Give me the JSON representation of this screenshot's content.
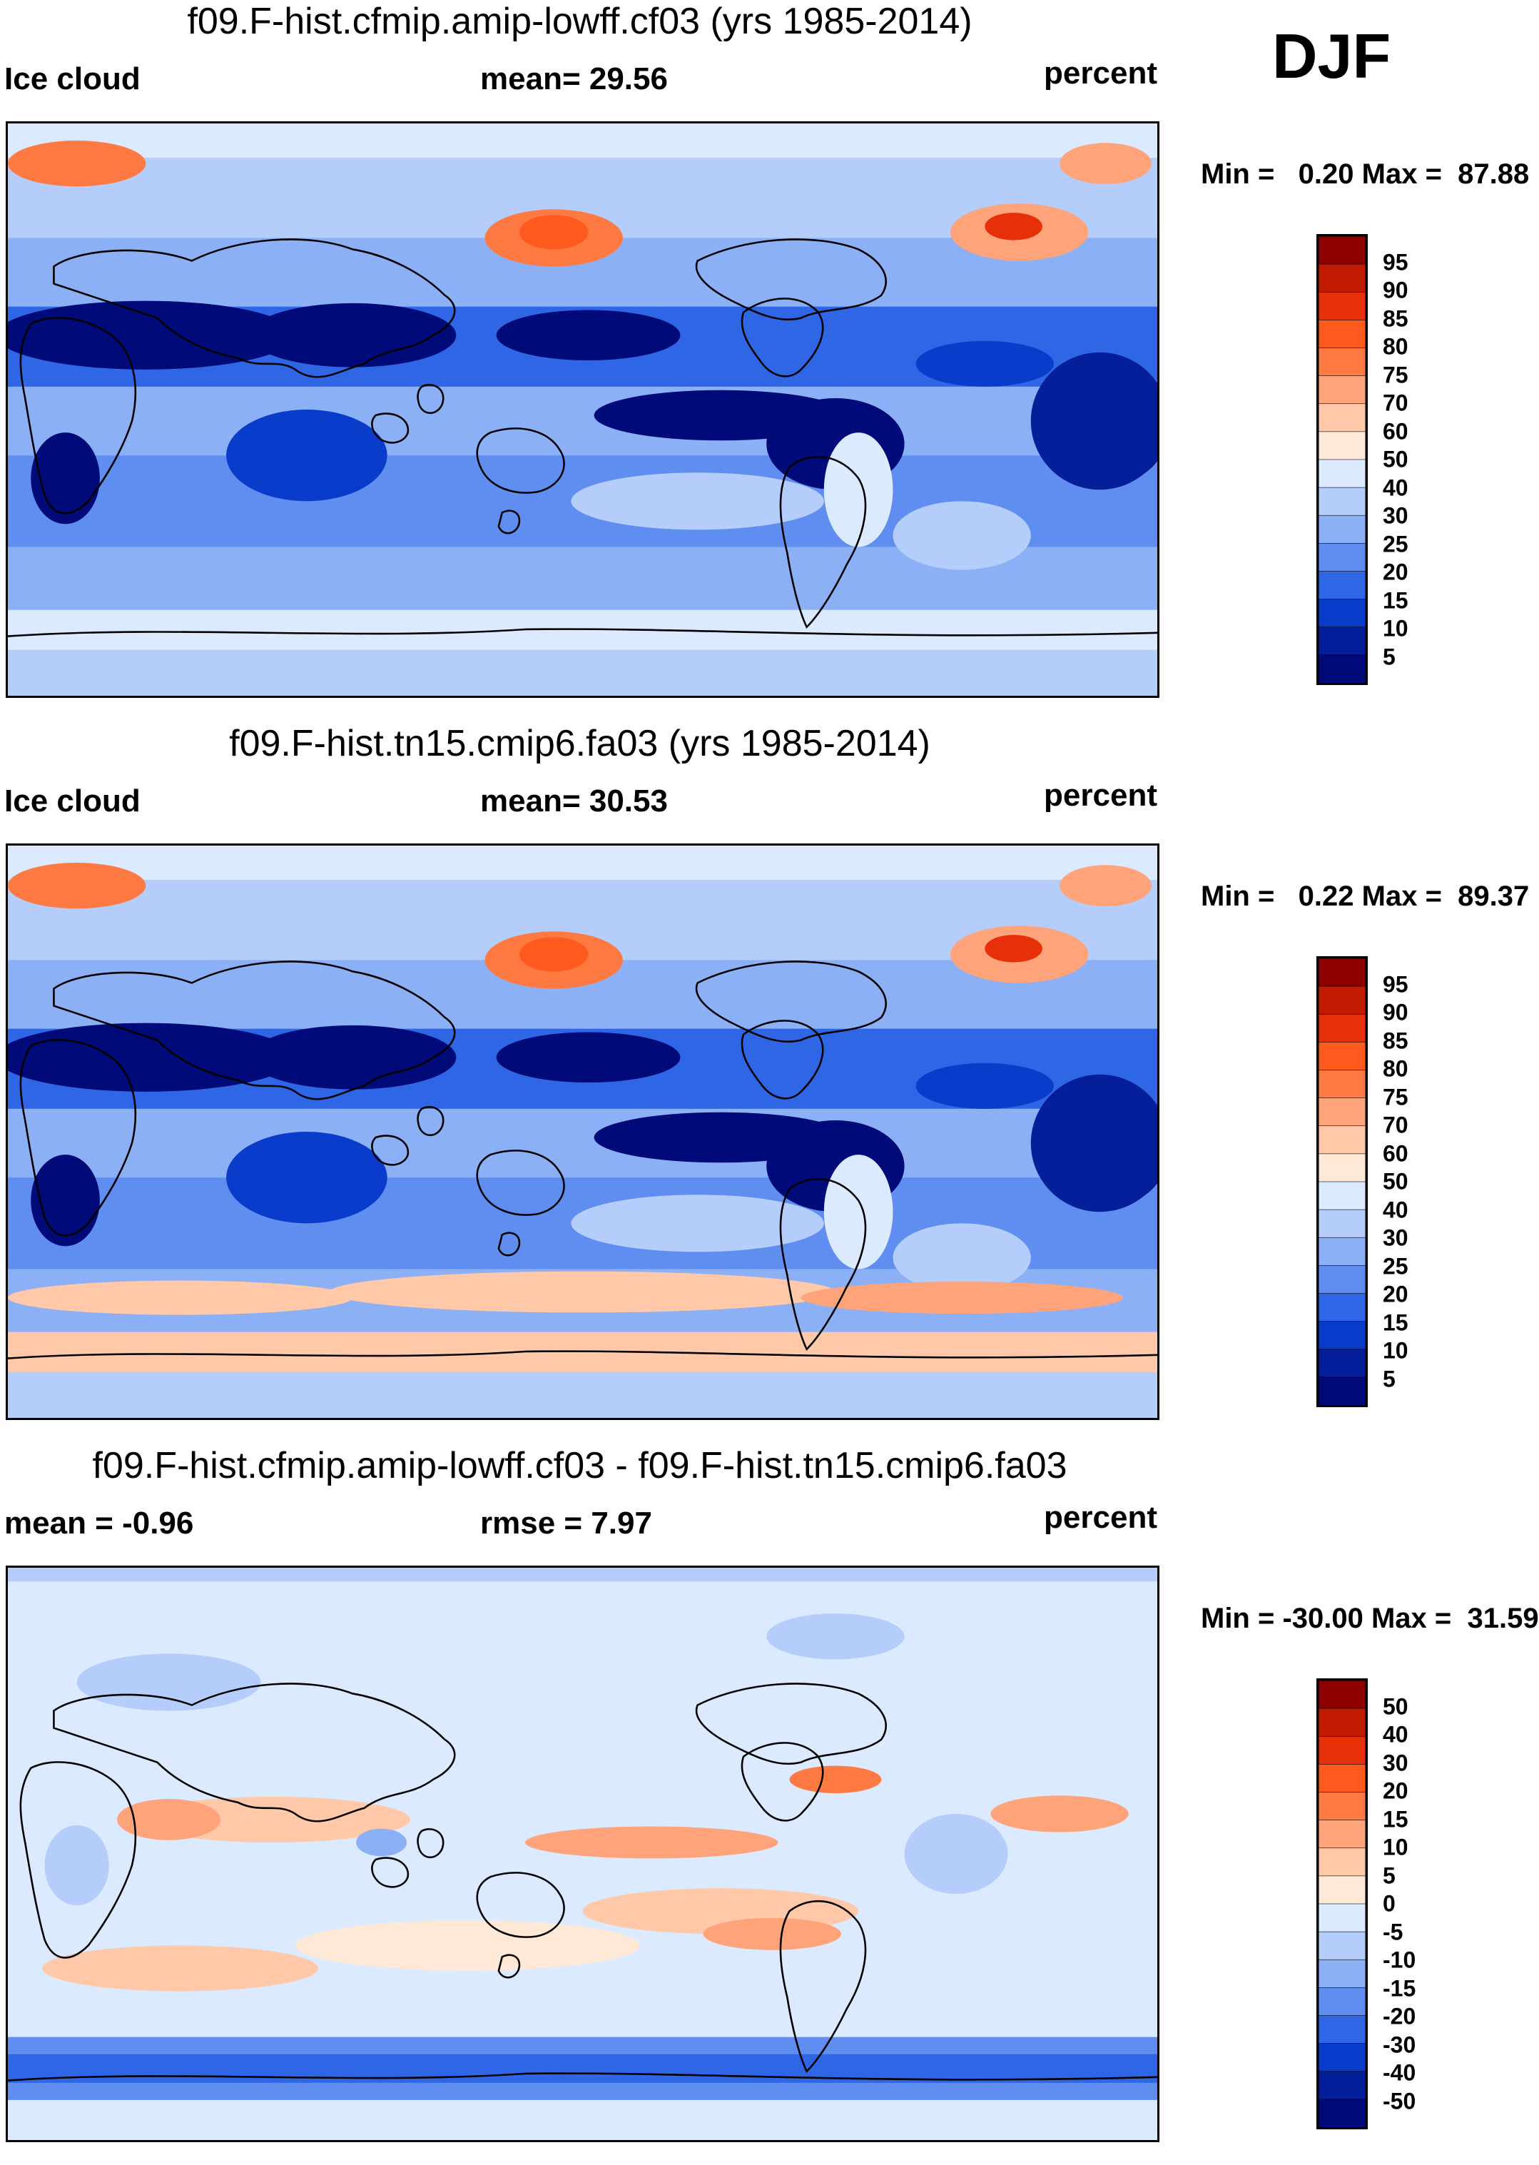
{
  "season": "DJF",
  "panels": [
    {
      "title": "f09.F-hist.cfmip.amip-lowff.cf03 (yrs 1985-2014)",
      "left_label": "Ice cloud",
      "mid_label": "mean=  29.56",
      "right_label": "percent",
      "minmax": "Min =   0.20 Max =  87.88"
    },
    {
      "title": "f09.F-hist.tn15.cmip6.fa03 (yrs 1985-2014)",
      "left_label": "Ice cloud",
      "mid_label": "mean=  30.53",
      "right_label": "percent",
      "minmax": "Min =   0.22 Max =  89.37"
    },
    {
      "title": "f09.F-hist.cfmip.amip-lowff.cf03 - f09.F-hist.tn15.cmip6.fa03",
      "left_label": "mean =  -0.96",
      "mid_label": "rmse =    7.97",
      "right_label": "percent",
      "minmax": "Min = -30.00 Max =  31.59"
    }
  ],
  "chart_data": [
    {
      "type": "heatmap",
      "title": "f09.F-hist.cfmip.amip-lowff.cf03 (yrs 1985-2014)",
      "variable": "Ice cloud",
      "units": "percent",
      "mean": 29.56,
      "min": 0.2,
      "max": 87.88,
      "colorbar_levels": [
        95,
        90,
        85,
        80,
        75,
        70,
        60,
        50,
        40,
        30,
        25,
        20,
        15,
        10,
        5
      ],
      "colorbar_colors": [
        "#8c0000",
        "#c01a00",
        "#e6300a",
        "#ff5a1e",
        "#ff7a42",
        "#ffa37a",
        "#ffc8a8",
        "#ffe8d6",
        "#dbeaff",
        "#b4cdfa",
        "#8cb0f5",
        "#5f8ef0",
        "#2e66e6",
        "#0a3ccc",
        "#051e9a",
        "#000a78"
      ]
    },
    {
      "type": "heatmap",
      "title": "f09.F-hist.tn15.cmip6.fa03 (yrs 1985-2014)",
      "variable": "Ice cloud",
      "units": "percent",
      "mean": 30.53,
      "min": 0.22,
      "max": 89.37,
      "colorbar_levels": [
        95,
        90,
        85,
        80,
        75,
        70,
        60,
        50,
        40,
        30,
        25,
        20,
        15,
        10,
        5
      ],
      "colorbar_colors": [
        "#8c0000",
        "#c01a00",
        "#e6300a",
        "#ff5a1e",
        "#ff7a42",
        "#ffa37a",
        "#ffc8a8",
        "#ffe8d6",
        "#dbeaff",
        "#b4cdfa",
        "#8cb0f5",
        "#5f8ef0",
        "#2e66e6",
        "#0a3ccc",
        "#051e9a",
        "#000a78"
      ]
    },
    {
      "type": "heatmap",
      "title": "f09.F-hist.cfmip.amip-lowff.cf03 - f09.F-hist.tn15.cmip6.fa03",
      "units": "percent",
      "mean": -0.96,
      "rmse": 7.97,
      "min": -30.0,
      "max": 31.59,
      "colorbar_levels": [
        50,
        40,
        30,
        20,
        15,
        10,
        5,
        0,
        -5,
        -10,
        -15,
        -20,
        -30,
        -40,
        -50
      ],
      "colorbar_colors": [
        "#8c0000",
        "#c01a00",
        "#e6300a",
        "#ff5a1e",
        "#ff7a42",
        "#ffa37a",
        "#ffc8a8",
        "#ffe8d6",
        "#dbeaff",
        "#b4cdfa",
        "#8cb0f5",
        "#5f8ef0",
        "#2e66e6",
        "#0a3ccc",
        "#051e9a",
        "#000a78"
      ]
    }
  ]
}
